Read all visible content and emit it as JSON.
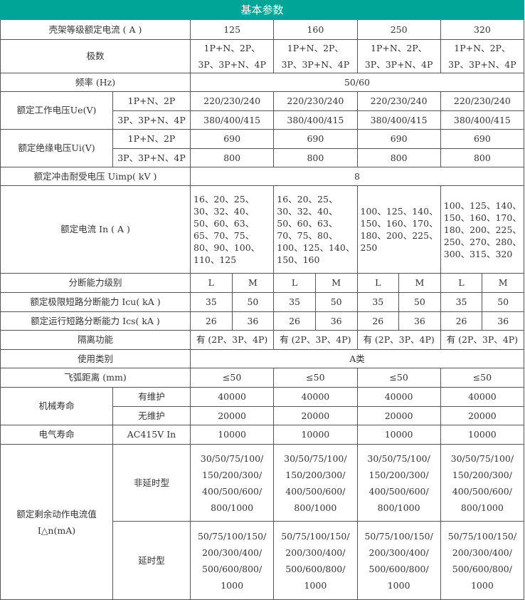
{
  "title": "基本参数",
  "frame": {
    "label": "壳架等级额定电流 ( A )",
    "values": [
      "125",
      "160",
      "250",
      "320"
    ]
  },
  "poles": {
    "label": "极数",
    "value": "1P+N、2P、\n3P、3P+N、4P"
  },
  "freq": {
    "label": "频率 (Hz)",
    "value": "50/60"
  },
  "ue": {
    "label": "额定工作电压Ue(V)",
    "sub": [
      "1P+N、2P",
      "3P、3P+N、4P"
    ],
    "values": [
      "220/230/240",
      "380/400/415"
    ]
  },
  "ui": {
    "label": "额定绝缘电压Ui(V)",
    "sub": [
      "1P+N、2P",
      "3P、3P+N、4P"
    ],
    "values": [
      "690",
      "800"
    ]
  },
  "uimp": {
    "label": "额定冲击耐受电压 Uimp( kV )",
    "value": "8"
  },
  "in": {
    "label": "额定电流 In ( A )",
    "values": [
      "16、20、25、\n30、32、40、\n50、60、63、\n65、70、75、\n80、90、100、\n110、125",
      "16、20、25、\n30、32、40、\n50、60、63、\n70、75、80、\n100、125、140、\n150、160",
      "100、125、140、\n150、160、170、\n180、200、225、\n250",
      "100、125、140、\n150、160、170、\n180、200、225、\n250、270、280、\n300、315、320"
    ]
  },
  "level": {
    "label": "分断能力级别",
    "values": [
      "L",
      "M"
    ]
  },
  "icu": {
    "label": "额定极限短路分断能力 Icu( kA )",
    "values": [
      "35",
      "50"
    ]
  },
  "ics": {
    "label": "额定运行短路分断能力 Ics( kA )",
    "values": [
      "26",
      "36"
    ]
  },
  "isolation": {
    "label": "隔离功能",
    "value": "有 (2P、3P、4P)"
  },
  "category": {
    "label": "使用类别",
    "value": "A类"
  },
  "arc": {
    "label": "飞弧距离 (mm)",
    "value": "≤50"
  },
  "mech": {
    "label": "机械寿命",
    "sub": [
      "有维护",
      "无维护"
    ],
    "values": [
      "40000",
      "20000"
    ]
  },
  "elec": {
    "label": "电气寿命",
    "sub": "AC415V In",
    "value": "10000"
  },
  "residual": {
    "label": "额定剩余动作电流值\nI△n(mA)",
    "sub": [
      "非延时型",
      "延时型"
    ],
    "values": [
      "30/50/75/100/\n150/200/300/\n400/500/600/\n800/1000",
      "50/75/100/150/\n200/300/400/\n500/600/800/\n1000"
    ]
  },
  "colors": {
    "header": "#00a597",
    "border": "#555555",
    "text": "#333333"
  }
}
